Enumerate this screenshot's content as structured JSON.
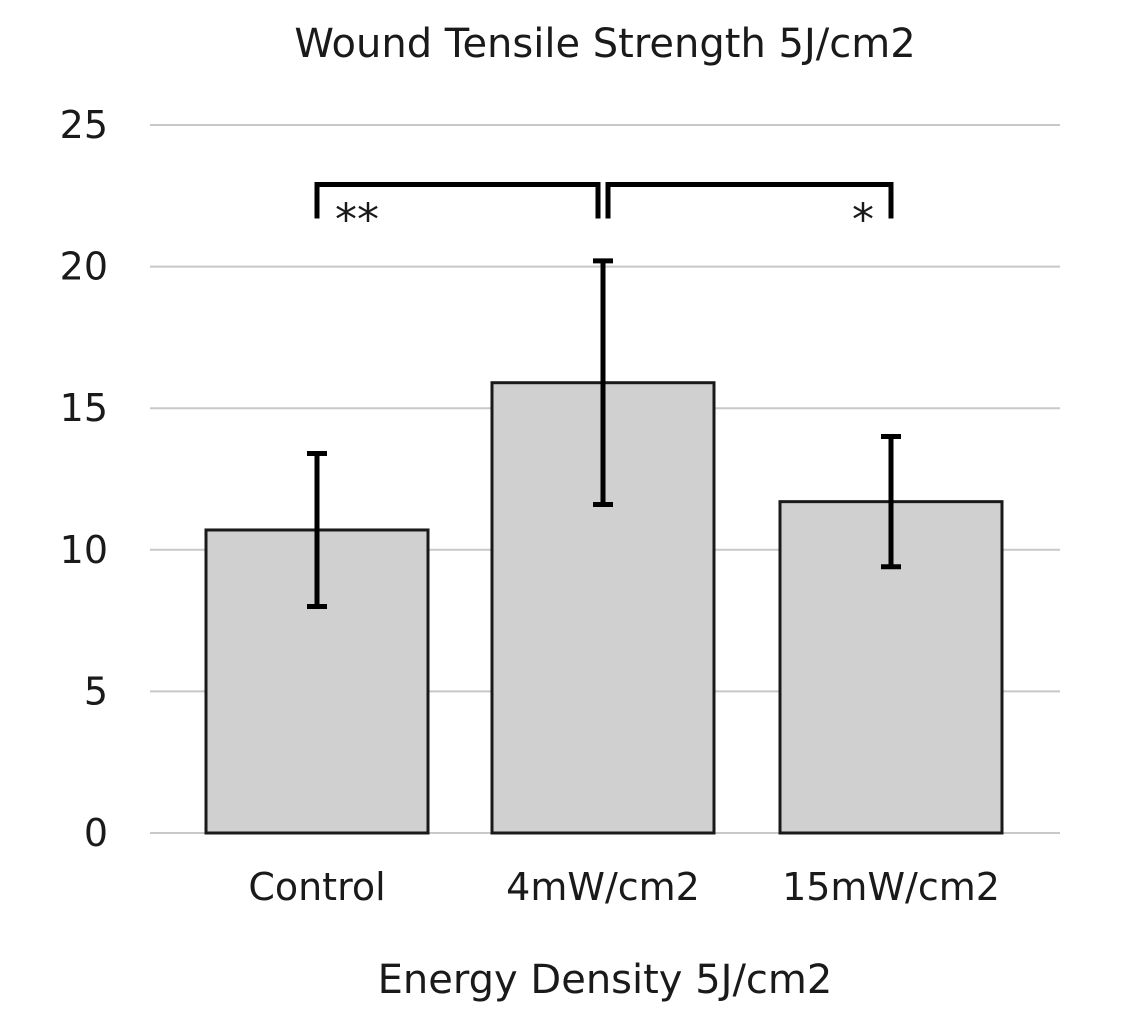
{
  "chart_data": {
    "type": "bar",
    "title": "Wound Tensile Strength 5J/cm2",
    "xlabel": "Energy Density 5J/cm2",
    "ylabel": "",
    "categories": [
      "Control",
      "4mW/cm2",
      "15mW/cm2"
    ],
    "values": [
      10.7,
      15.9,
      11.7
    ],
    "error_low": [
      8.0,
      11.6,
      9.4
    ],
    "error_high": [
      13.4,
      20.2,
      14.0
    ],
    "ylim": [
      0,
      25
    ],
    "yticks": [
      0,
      5,
      10,
      15,
      20,
      25
    ],
    "grid": true,
    "legend": "none",
    "colors": {
      "bar_fill": "#d0d0d0",
      "bar_stroke": "#1a1a1a",
      "grid": "#c8c8c8"
    },
    "significance": [
      {
        "from": 0,
        "to": 1,
        "label": "**"
      },
      {
        "from": 1,
        "to": 2,
        "label": "*"
      }
    ]
  }
}
